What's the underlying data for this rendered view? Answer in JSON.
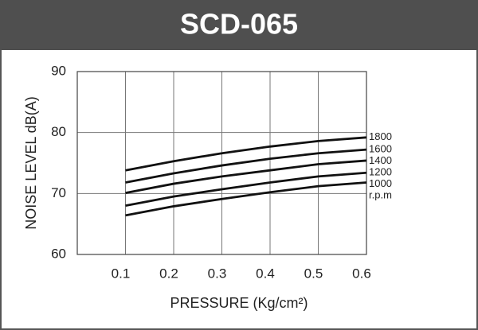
{
  "chart_data": {
    "type": "line",
    "title": "SCD-065",
    "xlabel": "PRESSURE  (Kg/cm²)",
    "ylabel": "NOISE LEVEL dB(A)",
    "x": [
      0.1,
      0.2,
      0.3,
      0.4,
      0.5,
      0.6
    ],
    "series": [
      {
        "name": "1800",
        "color": "#111111",
        "values": [
          73.8,
          75.3,
          76.6,
          77.7,
          78.6,
          79.2
        ]
      },
      {
        "name": "1600",
        "color": "#111111",
        "values": [
          71.8,
          73.3,
          74.6,
          75.7,
          76.6,
          77.2
        ]
      },
      {
        "name": "1400",
        "color": "#111111",
        "values": [
          70.1,
          71.6,
          72.8,
          73.8,
          74.8,
          75.4
        ]
      },
      {
        "name": "1200",
        "color": "#111111",
        "values": [
          68.0,
          69.5,
          70.7,
          71.8,
          72.8,
          73.4
        ]
      },
      {
        "name": "1000",
        "color": "#111111",
        "values": [
          66.4,
          67.9,
          69.1,
          70.2,
          71.2,
          71.8
        ]
      }
    ],
    "unit_label": "r.p.m",
    "xlim": [
      0,
      0.6
    ],
    "xticks": [
      0.1,
      0.2,
      0.3,
      0.4,
      0.5,
      0.6
    ],
    "ylim": [
      60,
      90
    ],
    "yticks": [
      60,
      70,
      80,
      90
    ],
    "grid": true
  }
}
